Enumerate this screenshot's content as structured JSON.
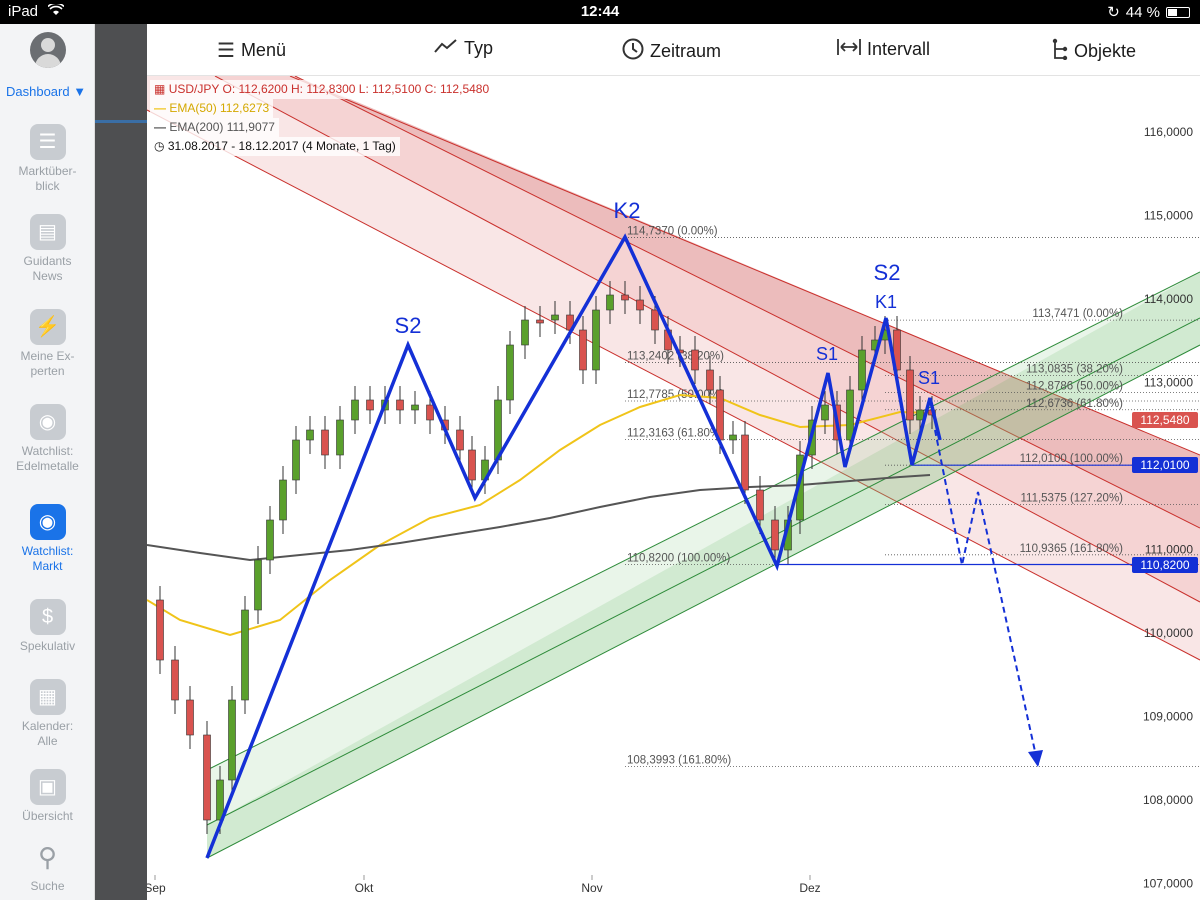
{
  "status_bar": {
    "device": "iPad",
    "time": "12:44",
    "battery": "44 %"
  },
  "sidebar": {
    "dashboard_label": "Dashboard",
    "items": [
      {
        "label": "Marktüber-\nblick",
        "icon": "list-icon",
        "active": false
      },
      {
        "label": "Guidants\nNews",
        "icon": "news-icon",
        "active": false
      },
      {
        "label": "Meine Ex-\nperten",
        "icon": "bolt-icon",
        "active": false
      },
      {
        "label": "Watchlist:\nEdelmetalle",
        "icon": "eye-icon",
        "active": false
      },
      {
        "label": "Watchlist:\nMarkt",
        "icon": "eye-icon",
        "active": true
      },
      {
        "label": "Spekulativ",
        "icon": "dollar-icon",
        "active": false
      },
      {
        "label": "Kalender:\nAlle",
        "icon": "calendar-icon",
        "active": false
      },
      {
        "label": "Übersicht",
        "icon": "grid-icon",
        "active": false
      },
      {
        "label": "Suche",
        "icon": "search-icon",
        "active": false
      }
    ]
  },
  "toolbar": {
    "menu": "Menü",
    "type": "Typ",
    "period": "Zeitraum",
    "interval": "Intervall",
    "objects": "Objekte"
  },
  "legend": {
    "ohlc": "USD/JPY  O: 112,6200   H: 112,8300   L: 112,5100   C: 112,5480",
    "ema50": "EMA(50)  112,6273",
    "ema200": "EMA(200)  111,9077",
    "range": "31.08.2017 - 18.12.2017   (4 Monate, 1 Tag)"
  },
  "colors": {
    "up": "#5aa02c",
    "down": "#d9534f",
    "ema50": "#f0c419",
    "ema200": "#555555",
    "pattern": "#1430d6",
    "red_channel": "#c9302c",
    "green_channel": "#2e8b3a"
  },
  "chart_data": {
    "type": "candlestick",
    "symbol": "USD/JPY",
    "ylim": [
      107.0,
      116.5
    ],
    "y_ticks": [
      "116,0000",
      "115,0000",
      "114,0000",
      "113,0000",
      "112,0000",
      "111,0000",
      "110,0000",
      "109,0000",
      "108,0000",
      "107,0000"
    ],
    "x_ticks": [
      "Sep",
      "Okt",
      "Nov",
      "Dez"
    ],
    "last_price": "112,5480",
    "price_tags": [
      {
        "value": 112.548,
        "label": "112,5480",
        "color": "#d9534f"
      },
      {
        "value": 112.01,
        "label": "112,0100",
        "color": "#1430d6"
      },
      {
        "value": 110.82,
        "label": "110,8200",
        "color": "#1430d6"
      }
    ],
    "fib_levels": [
      {
        "label": "114,7370 (0.00%)",
        "value": 114.737
      },
      {
        "label": "113,2402 (38.20%)",
        "value": 113.2402
      },
      {
        "label": "112,7785 (50.00%)",
        "value": 112.7785
      },
      {
        "label": "112,3163 (61.80%)",
        "value": 112.3163
      },
      {
        "label": "110,8200 (100.00%)",
        "value": 110.82
      },
      {
        "label": "108,3993 (161.80%)",
        "value": 108.3993
      },
      {
        "label": "113,7471 (0.00%)",
        "value": 113.7471
      },
      {
        "label": "113,0835 (38.20%)",
        "value": 113.0835
      },
      {
        "label": "112,8786 (50.00%)",
        "value": 112.8786
      },
      {
        "label": "112,6736 (61.80%)",
        "value": 112.6736
      },
      {
        "label": "112,0100 (100.00%)",
        "value": 112.01
      },
      {
        "label": "111,5375 (127.20%)",
        "value": 111.5375
      },
      {
        "label": "110,9365 (161.80%)",
        "value": 110.9365
      }
    ],
    "pattern_labels": [
      "S2",
      "K2",
      "S2",
      "K1",
      "S1",
      "S1"
    ]
  }
}
